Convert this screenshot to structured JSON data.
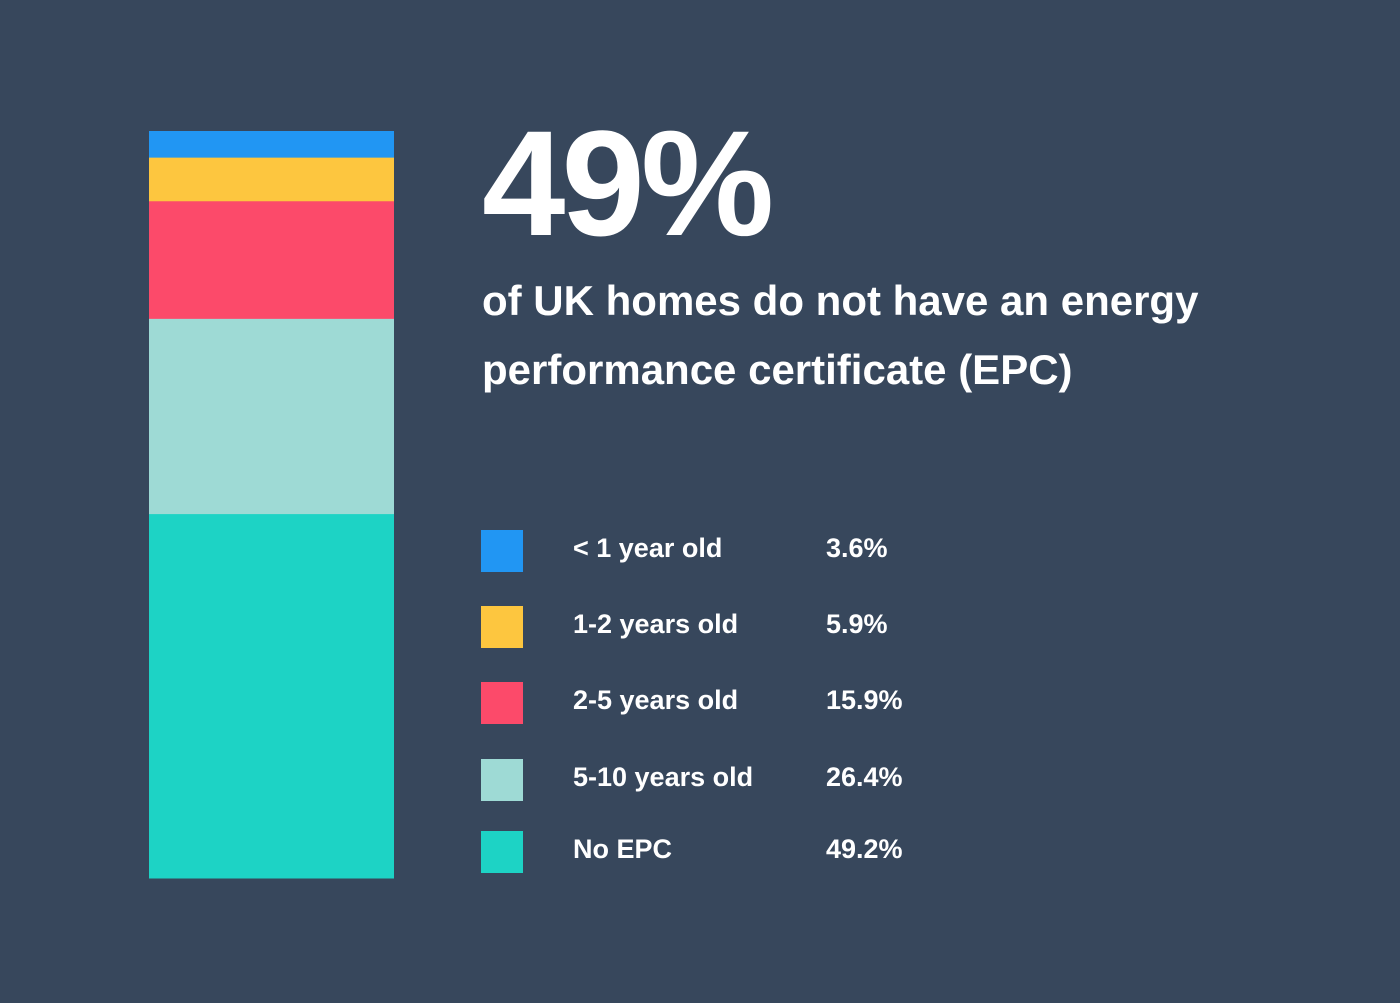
{
  "headline": "49%",
  "subtitle": "of UK homes do not have an energy performance certificate (EPC)",
  "chart_data": {
    "type": "bar",
    "stacked": true,
    "orientation": "vertical",
    "categories": [
      "< 1 year old",
      "1-2 years old",
      "2-5 years old",
      "5-10 years old",
      "No EPC"
    ],
    "values": [
      3.6,
      5.9,
      15.9,
      26.4,
      49.2
    ],
    "value_labels": [
      "3.6%",
      "5.9%",
      "15.9%",
      "26.4%",
      "49.2%"
    ],
    "colors": [
      "#2196f3",
      "#fdc63f",
      "#fc4a6a",
      "#9edad5",
      "#1dd3c5"
    ],
    "legend_placement": "right",
    "grid": false
  }
}
